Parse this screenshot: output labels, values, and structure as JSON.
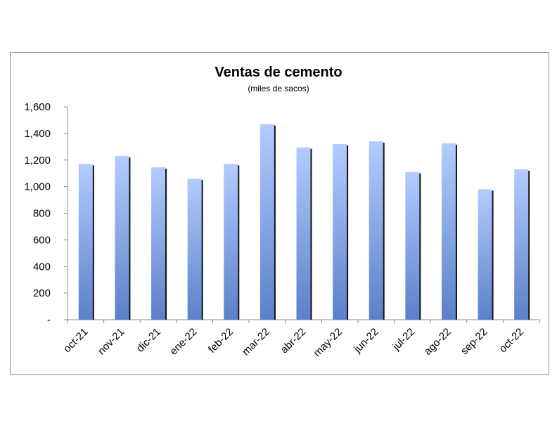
{
  "chart_data": {
    "type": "bar",
    "title": "Ventas de cemento",
    "subtitle": "(miles de sacos)",
    "categories": [
      "oct-21",
      "nov-21",
      "dic-21",
      "ene-22",
      "feb-22",
      "mar-22",
      "abr-22",
      "may-22",
      "jun-22",
      "jul-22",
      "ago-22",
      "sep-22",
      "oct-22"
    ],
    "values": [
      1170,
      1230,
      1145,
      1060,
      1170,
      1470,
      1295,
      1320,
      1340,
      1110,
      1325,
      980,
      1130
    ],
    "ylim": [
      0,
      1600
    ],
    "yticks": [
      0,
      200,
      400,
      600,
      800,
      1000,
      1200,
      1400,
      1600
    ],
    "ytick_labels": [
      "-",
      "200",
      "400",
      "600",
      "800",
      "1,000",
      "1,200",
      "1,400",
      "1,600"
    ],
    "grid": false,
    "legend": "none",
    "colors": {
      "bar_top": "#b3ccff",
      "bar_bottom": "#5b80c9",
      "bar_shadow": "#111111",
      "axis": "#8c8c8c"
    }
  }
}
